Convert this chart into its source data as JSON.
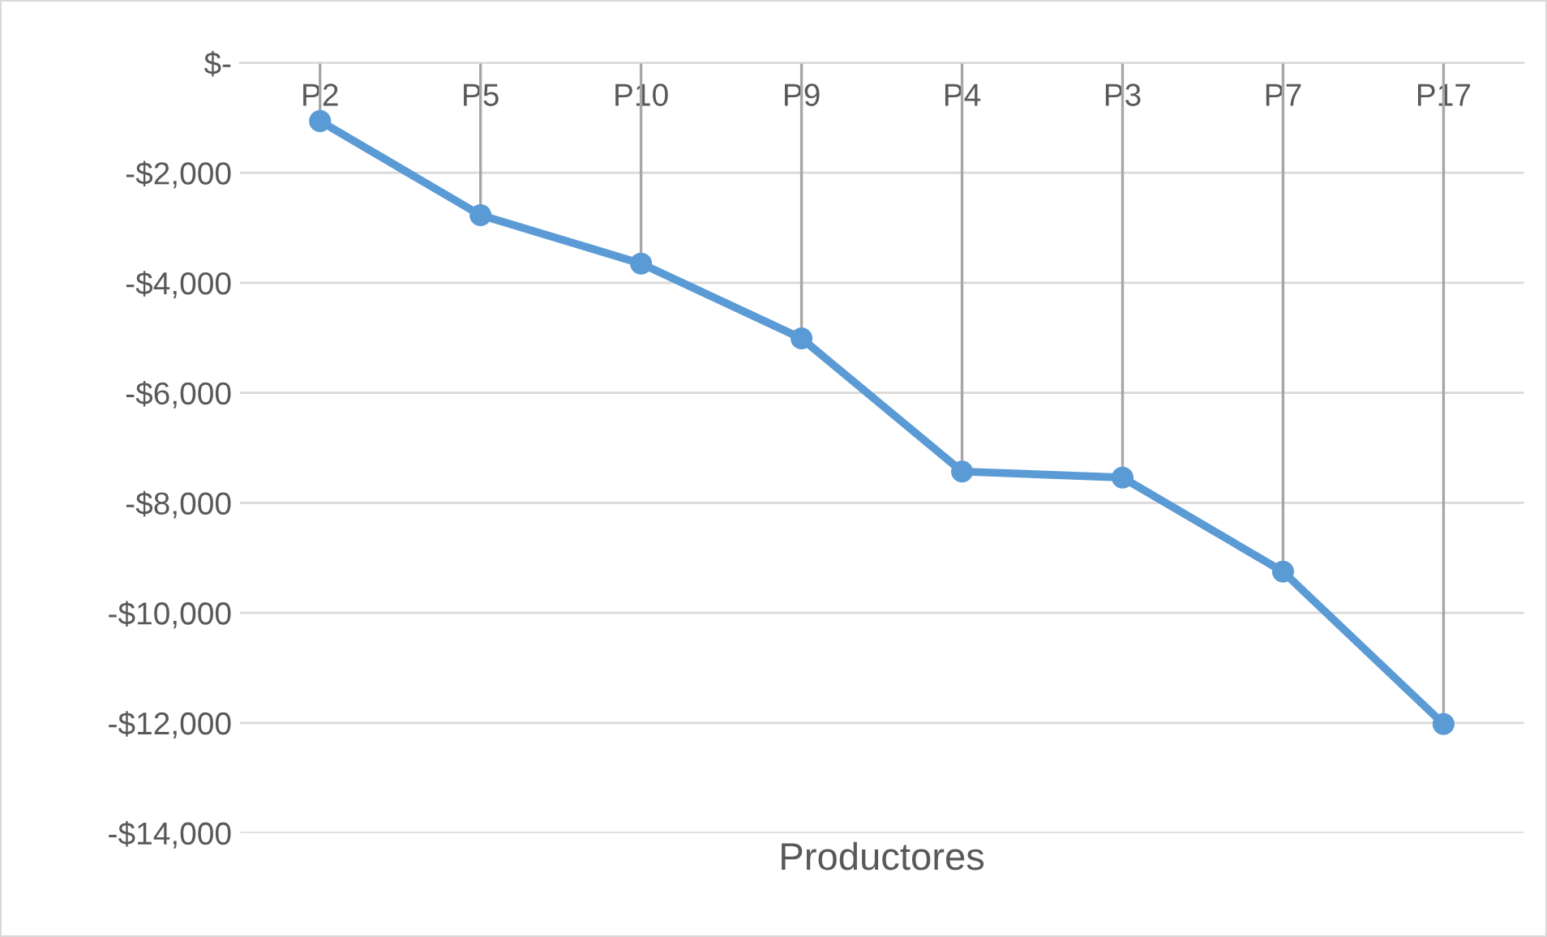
{
  "chart_data": {
    "type": "line",
    "xlabel": "Productores",
    "categories": [
      "P2",
      "P5",
      "P10",
      "P9",
      "P4",
      "P3",
      "P7",
      "P17"
    ],
    "series": [
      {
        "color": "#5b9bd5",
        "marker": "circle",
        "values": [
          -1060,
          -2770,
          -3650,
          -5010,
          -7430,
          -7540,
          -9250,
          -12020
        ],
        "errors": [
          [
            -1060,
            0
          ],
          [
            -2770,
            0
          ],
          [
            -3650,
            0
          ],
          [
            -5010,
            0
          ],
          [
            -7430,
            0
          ],
          [
            -7540,
            0
          ],
          [
            -9250,
            0
          ],
          [
            -12020,
            0
          ]
        ]
      }
    ],
    "ylim": [
      -14000,
      0
    ],
    "yticks": [
      {
        "value": -14000,
        "label": "-$14,000"
      },
      {
        "value": -12000,
        "label": "-$12,000"
      },
      {
        "value": -10000,
        "label": "-$10,000"
      },
      {
        "value": -8000,
        "label": "-$8,000"
      },
      {
        "value": -6000,
        "label": "-$6,000"
      },
      {
        "value": -4000,
        "label": "-$4,000"
      },
      {
        "value": -2000,
        "label": "-$2,000"
      },
      {
        "value": 0,
        "label": "$-"
      }
    ],
    "grid": "y",
    "line_style": "solid"
  }
}
